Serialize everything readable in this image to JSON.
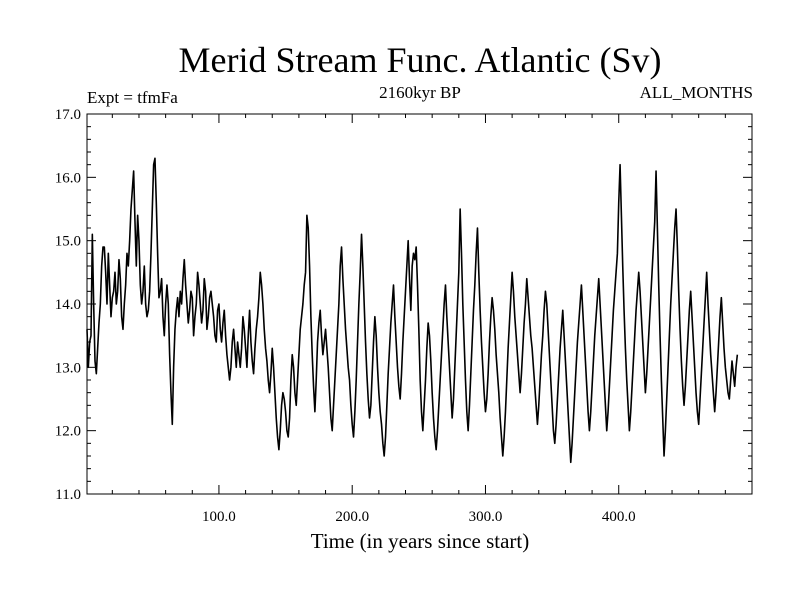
{
  "chart_data": {
    "type": "line",
    "title": "Merid Stream Func. Atlantic (Sv)",
    "subtitle_left": "Expt = tfmFa",
    "subtitle_center": "2160kyr BP",
    "subtitle_right": "ALL_MONTHS",
    "xlabel": "Time (in years since start)",
    "ylabel": "",
    "xlim": [
      1,
      500
    ],
    "ylim": [
      11.0,
      17.0
    ],
    "x_ticks": [
      100,
      200,
      300,
      400
    ],
    "x_tick_labels": [
      "100.0",
      "200.0",
      "300.0",
      "400.0"
    ],
    "y_ticks": [
      11,
      12,
      13,
      14,
      15,
      16,
      17
    ],
    "y_tick_labels": [
      "11.0",
      "12.0",
      "13.0",
      "14.0",
      "15.0",
      "16.0",
      "17.0"
    ],
    "grid": false,
    "series": [
      {
        "name": "Merid Stream Func. Atlantic",
        "color": "#000000",
        "x_start": 1,
        "x_step": 1,
        "values": [
          13.6,
          13.0,
          13.4,
          13.5,
          15.1,
          14.0,
          13.1,
          12.9,
          13.3,
          13.7,
          14.0,
          14.6,
          14.9,
          14.9,
          14.5,
          14.0,
          14.8,
          14.3,
          13.8,
          14.1,
          14.2,
          14.5,
          14.0,
          14.2,
          14.7,
          14.4,
          13.8,
          13.6,
          14.0,
          14.3,
          14.8,
          14.6,
          15.0,
          15.5,
          15.8,
          16.1,
          15.3,
          14.6,
          15.4,
          15.0,
          14.3,
          14.0,
          14.2,
          14.6,
          14.0,
          13.8,
          13.9,
          14.2,
          14.8,
          15.5,
          16.2,
          16.3,
          15.6,
          14.8,
          14.1,
          14.2,
          14.4,
          13.8,
          13.5,
          14.0,
          14.3,
          14.0,
          13.2,
          12.6,
          12.1,
          13.0,
          13.6,
          13.9,
          14.1,
          13.8,
          14.2,
          14.0,
          14.4,
          14.7,
          14.3,
          14.0,
          13.7,
          13.9,
          14.2,
          14.1,
          13.5,
          13.8,
          14.0,
          14.5,
          14.3,
          14.0,
          13.7,
          13.9,
          14.4,
          14.2,
          13.6,
          13.8,
          14.1,
          14.2,
          14.0,
          13.8,
          13.5,
          13.4,
          13.9,
          14.0,
          13.6,
          13.4,
          13.7,
          13.9,
          13.5,
          13.2,
          13.0,
          12.8,
          13.0,
          13.4,
          13.6,
          13.3,
          13.0,
          13.4,
          13.2,
          13.0,
          13.3,
          13.8,
          13.6,
          13.3,
          13.0,
          13.5,
          13.9,
          13.4,
          13.1,
          12.9,
          13.3,
          13.6,
          13.8,
          14.1,
          14.5,
          14.3,
          14.0,
          13.6,
          13.3,
          13.1,
          12.8,
          12.6,
          12.9,
          13.3,
          13.0,
          12.6,
          12.2,
          11.9,
          11.7,
          12.0,
          12.4,
          12.6,
          12.5,
          12.3,
          12.0,
          11.9,
          12.2,
          12.8,
          13.2,
          13.0,
          12.6,
          12.4,
          12.8,
          13.2,
          13.6,
          13.8,
          14.0,
          14.3,
          14.5,
          15.4,
          15.2,
          14.6,
          13.8,
          13.2,
          12.7,
          12.3,
          12.8,
          13.4,
          13.7,
          13.9,
          13.5,
          13.2,
          13.4,
          13.6,
          13.3,
          13.0,
          12.6,
          12.2,
          12.0,
          12.4,
          12.8,
          13.2,
          13.6,
          14.0,
          14.6,
          14.9,
          14.4,
          14.0,
          13.6,
          13.3,
          13.0,
          12.8,
          12.4,
          12.1,
          11.9,
          12.3,
          12.8,
          13.4,
          14.0,
          14.5,
          15.1,
          14.6,
          14.0,
          13.4,
          12.9,
          12.5,
          12.2,
          12.4,
          12.9,
          13.4,
          13.8,
          13.5,
          13.0,
          12.6,
          12.3,
          12.1,
          11.8,
          11.6,
          11.9,
          12.4,
          12.9,
          13.3,
          13.7,
          14.0,
          14.3,
          13.8,
          13.4,
          13.0,
          12.7,
          12.5,
          12.9,
          13.4,
          13.8,
          14.2,
          14.6,
          15.0,
          14.4,
          13.9,
          14.6,
          14.8,
          14.7,
          14.9,
          14.3,
          13.6,
          12.8,
          12.3,
          12.0,
          12.4,
          12.8,
          13.3,
          13.7,
          13.5,
          13.1,
          12.6,
          12.2,
          11.9,
          11.7,
          12.0,
          12.4,
          12.8,
          13.2,
          13.6,
          14.0,
          14.3,
          13.8,
          13.4,
          13.0,
          12.6,
          12.2,
          12.5,
          13.0,
          13.5,
          14.0,
          14.5,
          15.5,
          14.8,
          14.0,
          13.4,
          12.8,
          12.3,
          12.0,
          12.4,
          12.9,
          13.4,
          13.9,
          14.3,
          14.8,
          15.2,
          14.5,
          13.9,
          13.4,
          13.0,
          12.6,
          12.3,
          12.5,
          12.9,
          13.4,
          13.8,
          14.1,
          13.9,
          13.6,
          13.2,
          12.9,
          12.6,
          12.2,
          11.9,
          11.6,
          11.9,
          12.3,
          12.8,
          13.3,
          13.7,
          14.1,
          14.5,
          14.2,
          13.8,
          13.5,
          13.2,
          12.9,
          12.6,
          12.9,
          13.3,
          13.7,
          14.0,
          14.4,
          14.1,
          13.8,
          13.5,
          13.3,
          13.0,
          12.7,
          12.4,
          12.1,
          12.4,
          12.8,
          13.2,
          13.5,
          13.9,
          14.2,
          14.0,
          13.6,
          13.2,
          12.8,
          12.4,
          12.0,
          11.8,
          12.1,
          12.5,
          12.9,
          13.3,
          13.6,
          13.9,
          13.5,
          13.1,
          12.7,
          12.3,
          11.9,
          11.5,
          11.8,
          12.2,
          12.6,
          13.0,
          13.4,
          13.7,
          14.0,
          14.3,
          13.9,
          13.5,
          13.1,
          12.7,
          12.3,
          12.0,
          12.3,
          12.7,
          13.1,
          13.5,
          13.8,
          14.1,
          14.4,
          14.0,
          13.6,
          13.2,
          12.8,
          12.4,
          12.0,
          12.3,
          12.7,
          13.1,
          13.5,
          13.9,
          14.2,
          14.5,
          14.8,
          15.6,
          16.2,
          15.4,
          14.6,
          13.9,
          13.3,
          12.8,
          12.4,
          12.0,
          12.3,
          12.7,
          13.1,
          13.5,
          13.9,
          14.2,
          14.5,
          14.2,
          13.8,
          13.4,
          13.0,
          12.6,
          12.9,
          13.3,
          13.7,
          14.1,
          14.5,
          14.9,
          15.3,
          16.1,
          15.2,
          14.3,
          13.5,
          12.8,
          12.2,
          11.6,
          12.0,
          12.5,
          13.0,
          13.5,
          14.0,
          14.4,
          14.8,
          15.2,
          15.5,
          14.9,
          14.2,
          13.6,
          13.1,
          12.7,
          12.4,
          12.7,
          13.1,
          13.5,
          13.9,
          14.2,
          13.8,
          13.4,
          13.0,
          12.6,
          12.3,
          12.1,
          12.5,
          12.9,
          13.3,
          13.7,
          14.1,
          14.5,
          14.0,
          13.6,
          13.2,
          12.9,
          12.6,
          12.3,
          12.6,
          13.0,
          13.4,
          13.8,
          14.1,
          13.7,
          13.3,
          13.0,
          12.8,
          12.6,
          12.5,
          12.8,
          13.1,
          12.9,
          12.7,
          13.0,
          13.2
        ]
      }
    ]
  }
}
